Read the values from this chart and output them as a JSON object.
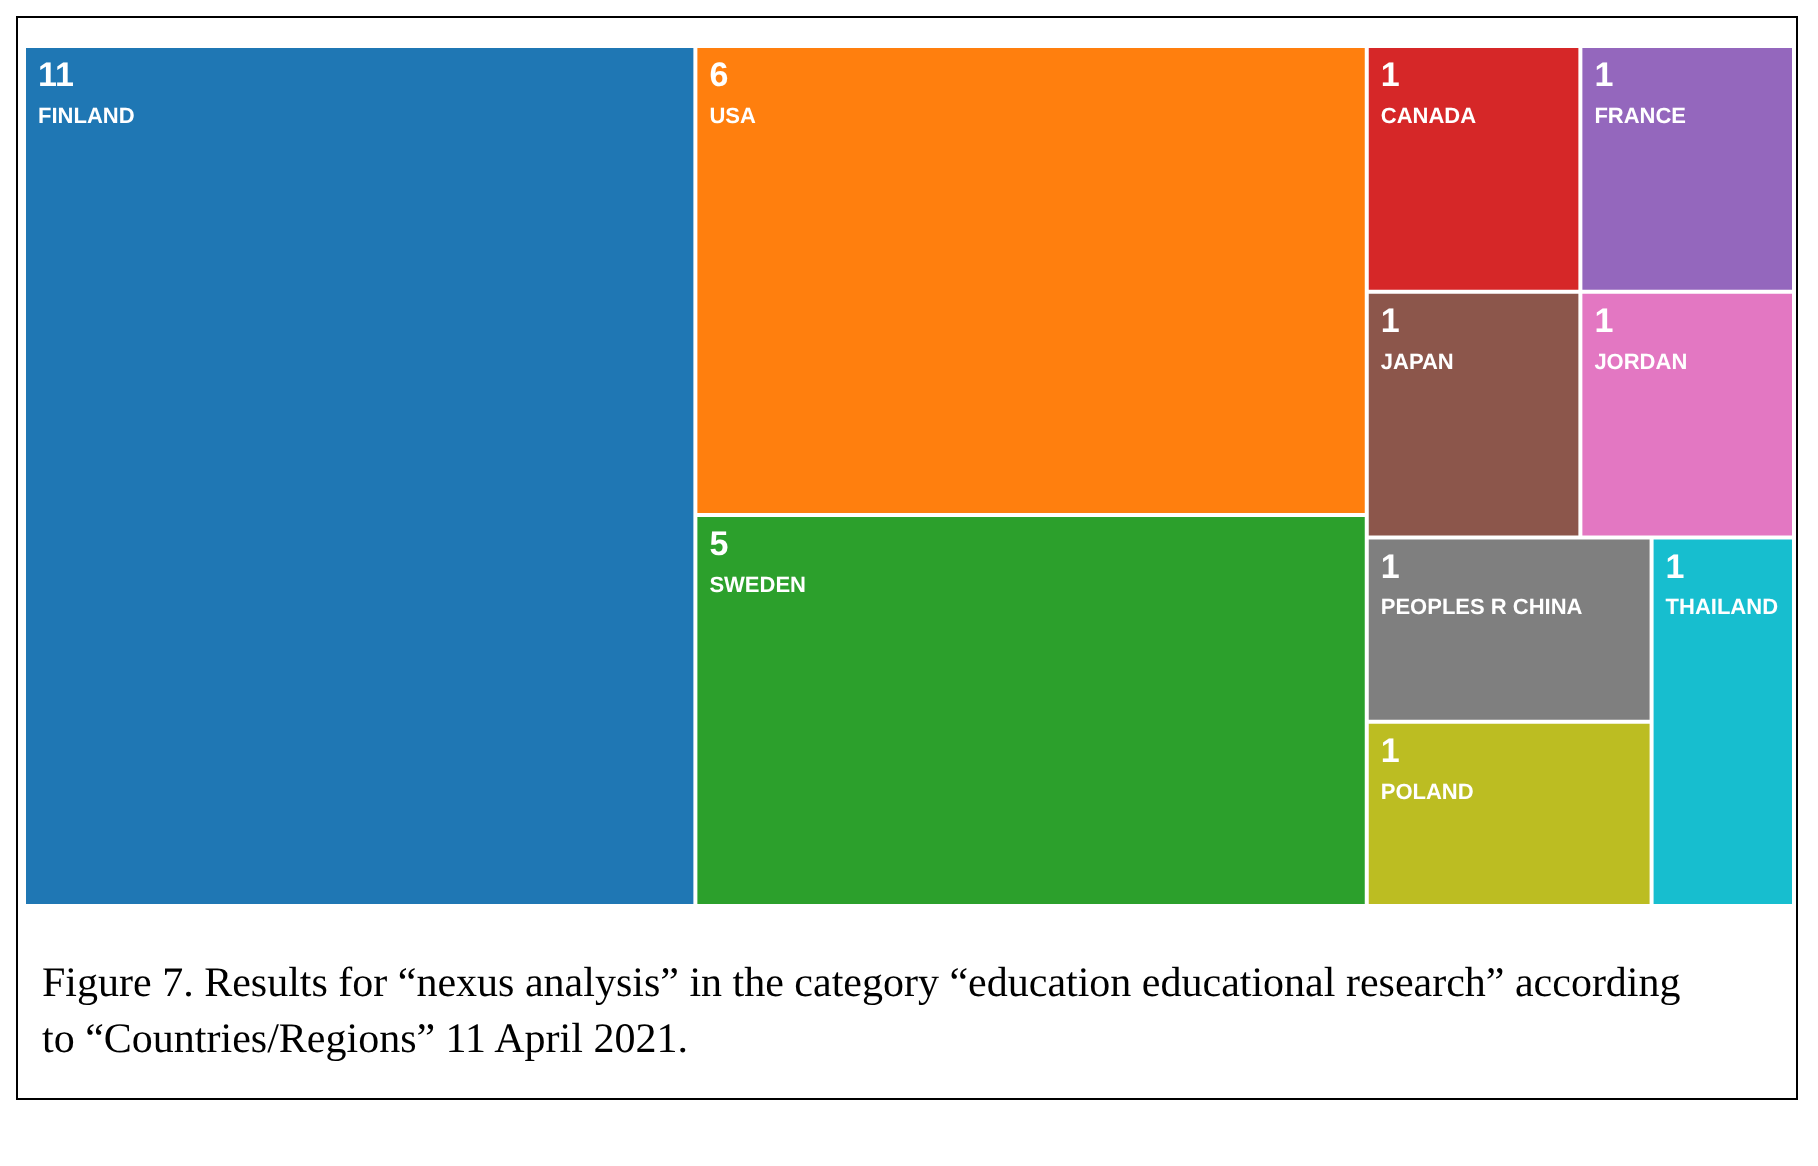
{
  "chart_data": {
    "type": "other",
    "categories": [
      "FINLAND",
      "USA",
      "SWEDEN",
      "CANADA",
      "FRANCE",
      "JAPAN",
      "JORDAN",
      "PEOPLES R CHINA",
      "POLAND",
      "THAILAND"
    ],
    "values": [
      11,
      6,
      5,
      1,
      1,
      1,
      1,
      1,
      1,
      1
    ],
    "colors": [
      "#1f77b4",
      "#ff7f0e",
      "#2ca02c",
      "#d62728",
      "#9467bd",
      "#8c564b",
      "#e377c2",
      "#7f7f7f",
      "#bcbd22",
      "#17becf"
    ],
    "data_labels": true,
    "annotations": [
      "Figure 7. Results for “nexus analysis” in the category “education educational research” according to “Countries/Regions” 11 April 2021."
    ]
  }
}
